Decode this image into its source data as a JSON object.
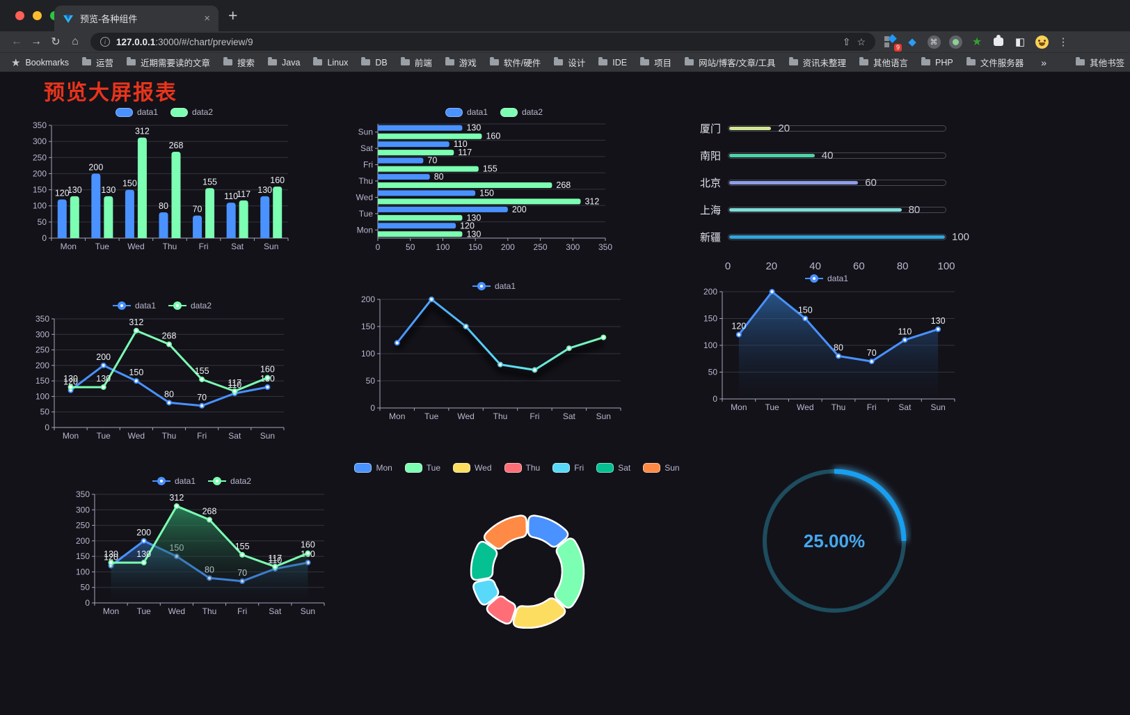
{
  "browser": {
    "tab": {
      "title": "预览-各种组件",
      "close_glyph": "×"
    },
    "new_tab_glyph": "+",
    "nav": {
      "back": "←",
      "forward": "→",
      "reload": "↻",
      "home": "⌂"
    },
    "address": {
      "host": "127.0.0.1",
      "rest": ":3000/#/chart/preview/9",
      "info_glyph": "i",
      "share_glyph": "⇧",
      "star_glyph": "☆"
    },
    "extensions": {
      "badge_count": "9",
      "command_glyph": "⌘",
      "gem_glyph": "◆",
      "star_glyph": "★",
      "reader_glyph": "◧",
      "menu_glyph": "⋮"
    },
    "bookmarks_bar": {
      "star_item": "Bookmarks",
      "folders": [
        "运营",
        "近期需要读的文章",
        "搜索",
        "Java",
        "Linux",
        "DB",
        "前端",
        "游戏",
        "软件/硬件",
        "设计",
        "IDE",
        "项目",
        "网站/博客/文章/工具",
        "资讯未整理",
        "其他语言",
        "PHP",
        "文件服务器"
      ],
      "overflow_glyph": "»",
      "other_bookmarks": "其他书签"
    }
  },
  "page": {
    "title": "预览大屏报表",
    "title_color": "#e8341c",
    "background": "#131219"
  },
  "chart_data": [
    {
      "id": "bar-vertical",
      "type": "bar",
      "categories": [
        "Mon",
        "Tue",
        "Wed",
        "Thu",
        "Fri",
        "Sat",
        "Sun"
      ],
      "series": [
        {
          "name": "data1",
          "color": "#4992ff",
          "values": [
            120,
            200,
            150,
            80,
            70,
            110,
            130
          ]
        },
        {
          "name": "data2",
          "color": "#7cffb2",
          "values": [
            130,
            130,
            312,
            268,
            155,
            117,
            160
          ]
        }
      ],
      "ylim": [
        0,
        350
      ],
      "ystep": 50,
      "grid": true,
      "show_labels": true,
      "legend_position": "top"
    },
    {
      "id": "bar-horizontal",
      "type": "hbar",
      "categories": [
        "Mon",
        "Tue",
        "Wed",
        "Thu",
        "Fri",
        "Sat",
        "Sun"
      ],
      "display_note": "Sun at top, Mon at bottom",
      "series": [
        {
          "name": "data1",
          "color": "#4992ff",
          "values": [
            120,
            200,
            150,
            80,
            70,
            110,
            130
          ]
        },
        {
          "name": "data2",
          "color": "#7cffb2",
          "values": [
            130,
            130,
            312,
            268,
            155,
            117,
            160
          ]
        }
      ],
      "xlim": [
        0,
        350
      ],
      "xstep": 50,
      "grid": true,
      "show_labels": true,
      "legend_position": "top"
    },
    {
      "id": "city-progress",
      "type": "progress_bars",
      "rows": [
        {
          "label": "厦门",
          "value": 20,
          "color": "#cfe693"
        },
        {
          "label": "南阳",
          "value": 40,
          "color": "#4ed3a6"
        },
        {
          "label": "北京",
          "value": 60,
          "color": "#8f9ee8"
        },
        {
          "label": "上海",
          "value": 80,
          "color": "#7fdcd8"
        },
        {
          "label": "新疆",
          "value": 100,
          "color": "#2da8dd"
        }
      ],
      "xlim": [
        0,
        100
      ],
      "xticks": [
        0,
        20,
        40,
        60,
        80,
        100
      ]
    },
    {
      "id": "line-two-series",
      "type": "line",
      "categories": [
        "Mon",
        "Tue",
        "Wed",
        "Thu",
        "Fri",
        "Sat",
        "Sun"
      ],
      "series": [
        {
          "name": "data1",
          "color": "#4992ff",
          "values": [
            120,
            200,
            150,
            80,
            70,
            110,
            130
          ]
        },
        {
          "name": "data2",
          "color": "#7cffb2",
          "values": [
            130,
            130,
            312,
            268,
            155,
            117,
            160
          ]
        }
      ],
      "ylim": [
        0,
        350
      ],
      "ystep": 50,
      "grid": true,
      "show_labels": true,
      "show_points": true,
      "legend_position": "top"
    },
    {
      "id": "line-gradient",
      "type": "line",
      "categories": [
        "Mon",
        "Tue",
        "Wed",
        "Thu",
        "Fri",
        "Sat",
        "Sun"
      ],
      "series": [
        {
          "name": "data1",
          "color": "#4992ff",
          "gradient": [
            "#4992ff",
            "#58d9f9",
            "#7cffb2"
          ],
          "shadow": true,
          "values": [
            120,
            200,
            150,
            80,
            70,
            110,
            130
          ]
        }
      ],
      "ylim": [
        0,
        200
      ],
      "ystep": 50,
      "grid": true,
      "show_labels": false,
      "show_points": true,
      "legend_position": "top"
    },
    {
      "id": "line-area",
      "type": "line",
      "categories": [
        "Mon",
        "Tue",
        "Wed",
        "Thu",
        "Fri",
        "Sat",
        "Sun"
      ],
      "series": [
        {
          "name": "data1",
          "color": "#4992ff",
          "area": [
            "#2e6cb0",
            "#17243a"
          ],
          "values": [
            120,
            200,
            150,
            80,
            70,
            110,
            130
          ]
        }
      ],
      "ylim": [
        0,
        200
      ],
      "ystep": 50,
      "grid": true,
      "show_labels": true,
      "show_points": true,
      "legend_position": "top"
    },
    {
      "id": "line-two-area",
      "type": "line",
      "categories": [
        "Mon",
        "Tue",
        "Wed",
        "Thu",
        "Fri",
        "Sat",
        "Sun"
      ],
      "series": [
        {
          "name": "data1",
          "color": "#4992ff",
          "area": [
            "#2a5e9e",
            "#131219"
          ],
          "values": [
            120,
            200,
            150,
            80,
            70,
            110,
            130
          ]
        },
        {
          "name": "data2",
          "color": "#7cffb2",
          "area": [
            "#2f9d68",
            "#131219"
          ],
          "values": [
            130,
            130,
            312,
            268,
            155,
            117,
            160
          ]
        }
      ],
      "ylim": [
        0,
        350
      ],
      "ystep": 50,
      "grid": true,
      "show_labels": true,
      "show_points": true,
      "legend_position": "top"
    },
    {
      "id": "donut-week",
      "type": "pie",
      "inner_radius_ratio": 0.62,
      "legend_position": "top",
      "slices": [
        {
          "label": "Mon",
          "value": 120,
          "color": "#4992ff"
        },
        {
          "label": "Tue",
          "value": 200,
          "color": "#7cffb2"
        },
        {
          "label": "Wed",
          "value": 150,
          "color": "#fddd60"
        },
        {
          "label": "Thu",
          "value": 80,
          "color": "#ff6e76"
        },
        {
          "label": "Fri",
          "value": 70,
          "color": "#58d9f9"
        },
        {
          "label": "Sat",
          "value": 110,
          "color": "#05c091"
        },
        {
          "label": "Sun",
          "value": 130,
          "color": "#ff8a45"
        }
      ]
    },
    {
      "id": "progress-ring",
      "type": "ring",
      "percent": 25,
      "label": "25.00%",
      "arc_color": "#179ff1",
      "track_color": "#1d4d5e",
      "text_color": "#45a8ee",
      "glow_color": "#55c4ff"
    }
  ]
}
